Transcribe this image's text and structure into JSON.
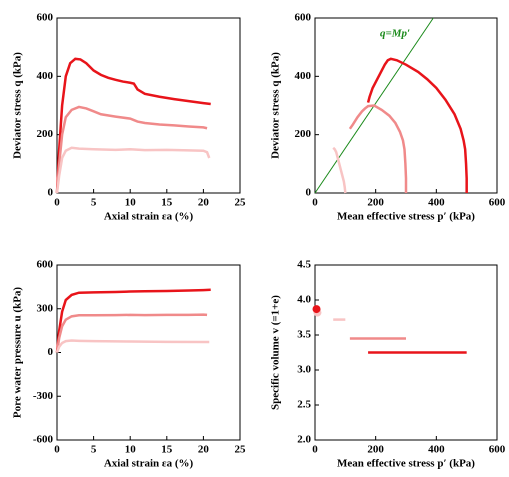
{
  "chart_data": [
    {
      "type": "line",
      "xlabel": "Axial strain  εa (%)",
      "ylabel": "Deviator stress  q (kPa)",
      "xlim": [
        0,
        25
      ],
      "ylim": [
        0,
        600
      ],
      "xticks": [
        0,
        5,
        10,
        15,
        20,
        25
      ],
      "yticks": [
        0,
        200,
        400,
        600
      ],
      "series": [
        {
          "color": "#e8141a",
          "x": [
            0,
            0.3,
            0.7,
            1.2,
            1.8,
            2.5,
            3.2,
            4,
            5,
            6,
            7,
            8,
            9,
            10,
            10.5,
            11,
            12,
            14,
            16,
            18,
            20,
            21
          ],
          "values": [
            0,
            150,
            300,
            400,
            445,
            460,
            458,
            445,
            420,
            405,
            395,
            388,
            382,
            378,
            375,
            355,
            340,
            330,
            322,
            315,
            308,
            305
          ]
        },
        {
          "color": "#f08a8a",
          "x": [
            0,
            0.3,
            0.7,
            1.2,
            2,
            3,
            4,
            5,
            6,
            8,
            10,
            10.5,
            11,
            12,
            14,
            16,
            18,
            20,
            20.5
          ],
          "values": [
            0,
            100,
            200,
            260,
            285,
            295,
            290,
            280,
            270,
            262,
            255,
            250,
            245,
            240,
            235,
            232,
            228,
            225,
            222
          ]
        },
        {
          "color": "#f8c4c4",
          "x": [
            0,
            0.3,
            0.7,
            1.2,
            2,
            3,
            5,
            8,
            10,
            12,
            15,
            18,
            20,
            20.5,
            20.8
          ],
          "values": [
            0,
            60,
            120,
            145,
            155,
            152,
            150,
            148,
            150,
            147,
            148,
            146,
            145,
            140,
            120
          ]
        }
      ]
    },
    {
      "type": "line",
      "xlabel": "Mean effective stress  p′ (kPa)",
      "ylabel": "Deviator stress  q (kPa)",
      "xlim": [
        0,
        600
      ],
      "ylim": [
        0,
        600
      ],
      "xticks": [
        0,
        200,
        400,
        600
      ],
      "yticks": [
        0,
        200,
        400,
        600
      ],
      "annotation": "q=Mp′",
      "series": [
        {
          "color": "#1a8a1a",
          "x": [
            0,
            390
          ],
          "values": [
            0,
            600
          ]
        },
        {
          "color": "#e8141a",
          "x": [
            500,
            500,
            498,
            495,
            490,
            480,
            460,
            430,
            400,
            370,
            340,
            300,
            270,
            250,
            240,
            230,
            215,
            200,
            190,
            180,
            175
          ],
          "values": [
            0,
            50,
            100,
            150,
            180,
            220,
            270,
            320,
            360,
            390,
            415,
            440,
            455,
            460,
            455,
            440,
            410,
            380,
            360,
            330,
            310
          ]
        },
        {
          "color": "#f08a8a",
          "x": [
            300,
            300,
            298,
            295,
            290,
            280,
            265,
            245,
            220,
            195,
            175,
            165,
            155,
            140,
            125,
            115
          ],
          "values": [
            0,
            50,
            100,
            150,
            180,
            210,
            240,
            265,
            285,
            300,
            298,
            290,
            280,
            260,
            235,
            220
          ]
        },
        {
          "color": "#f8c4c4",
          "x": [
            100,
            98,
            95,
            90,
            85,
            80,
            75,
            70,
            65,
            60
          ],
          "values": [
            0,
            20,
            40,
            60,
            80,
            100,
            120,
            140,
            150,
            155
          ]
        }
      ]
    },
    {
      "type": "line",
      "xlabel": "Axial strain  εa (%)",
      "ylabel": "Pore water pressure  u (kPa)",
      "xlim": [
        0,
        25
      ],
      "ylim": [
        -600,
        600
      ],
      "xticks": [
        0,
        5,
        10,
        15,
        20,
        25
      ],
      "yticks": [
        -600,
        -300,
        0,
        300,
        600
      ],
      "series": [
        {
          "color": "#e8141a",
          "x": [
            0,
            0.3,
            0.7,
            1.2,
            2,
            3,
            5,
            8,
            10,
            12,
            15,
            18,
            20,
            21
          ],
          "values": [
            0,
            150,
            280,
            360,
            395,
            410,
            412,
            415,
            418,
            420,
            422,
            425,
            428,
            430
          ]
        },
        {
          "color": "#f08a8a",
          "x": [
            0,
            0.3,
            0.7,
            1.2,
            2,
            3,
            5,
            8,
            10,
            12,
            15,
            18,
            20,
            20.5
          ],
          "values": [
            0,
            100,
            180,
            225,
            248,
            255,
            255,
            256,
            258,
            256,
            258,
            258,
            260,
            258
          ]
        },
        {
          "color": "#f8c4c4",
          "x": [
            0,
            0.3,
            0.7,
            1.2,
            2,
            3,
            5,
            10,
            15,
            20,
            20.8
          ],
          "values": [
            0,
            40,
            65,
            78,
            82,
            80,
            78,
            75,
            73,
            72,
            72
          ]
        }
      ]
    },
    {
      "type": "line",
      "xlabel": "Mean effective stress  p′ (kPa)",
      "ylabel": "Specific volume  v (=1+e)",
      "xlim": [
        0,
        600
      ],
      "ylim": [
        2.0,
        4.5
      ],
      "xticks": [
        0,
        200,
        400,
        600
      ],
      "yticks": [
        {
          "value": 2,
          "label": "2.0"
        },
        2.5,
        {
          "value": 3,
          "label": "3.0"
        },
        3.5,
        {
          "value": 4,
          "label": "4.0"
        },
        4.5
      ],
      "series": [
        {
          "color": "#e8141a",
          "x": [
            175,
            500
          ],
          "values": [
            3.25,
            3.25
          ]
        },
        {
          "color": "#f08a8a",
          "x": [
            115,
            300
          ],
          "values": [
            3.45,
            3.45
          ]
        },
        {
          "color": "#f8c4c4",
          "x": [
            60,
            100
          ],
          "values": [
            3.72,
            3.72
          ]
        },
        {
          "color": "#f8c4c4",
          "marker": "circle",
          "x": [
            8
          ],
          "values": [
            3.82
          ]
        },
        {
          "color": "#e8141a",
          "marker": "circle",
          "x": [
            5
          ],
          "values": [
            3.87
          ]
        }
      ]
    }
  ]
}
